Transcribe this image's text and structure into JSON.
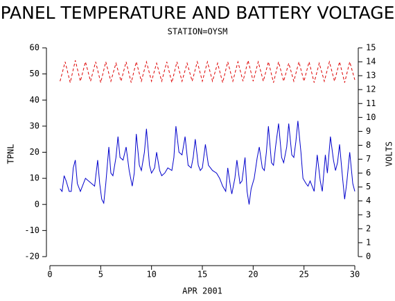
{
  "chart_data": {
    "type": "line",
    "title": "PANEL TEMPERATURE AND BATTERY VOLTAGE",
    "subtitle": "STATION=OYSM",
    "x_label": "APR 2001",
    "y_label": "TPNL",
    "y2_label": "VOLTS",
    "xlim": [
      0,
      30
    ],
    "xticks": [
      0,
      5,
      10,
      15,
      20,
      25,
      30
    ],
    "ylim": [
      -20,
      60
    ],
    "yticks": [
      -20,
      -10,
      0,
      10,
      20,
      30,
      40,
      50,
      60
    ],
    "y2lim": [
      0,
      15
    ],
    "y2ticks": [
      0,
      1,
      2,
      3,
      4,
      5,
      6,
      7,
      8,
      9,
      10,
      11,
      12,
      13,
      14,
      15
    ],
    "series": [
      {
        "color": "#0000cc",
        "x": [
          1.0,
          1.2,
          1.4,
          1.6,
          1.9,
          2.1,
          2.3,
          2.5,
          2.7,
          3.0,
          3.2,
          3.5,
          3.8,
          4.1,
          4.4,
          4.7,
          4.9,
          5.1,
          5.3,
          5.5,
          5.8,
          6.0,
          6.2,
          6.5,
          6.7,
          6.9,
          7.2,
          7.5,
          7.8,
          8.1,
          8.3,
          8.5,
          8.8,
          9.0,
          9.3,
          9.5,
          9.8,
          10.0,
          10.3,
          10.5,
          10.8,
          11.0,
          11.3,
          11.6,
          12.0,
          12.2,
          12.4,
          12.7,
          13.0,
          13.3,
          13.6,
          13.9,
          14.1,
          14.3,
          14.6,
          14.8,
          15.0,
          15.3,
          15.6,
          16.0,
          16.4,
          16.7,
          17.0,
          17.3,
          17.5,
          17.8,
          17.9,
          18.2,
          18.4,
          18.7,
          18.9,
          19.2,
          19.4,
          19.6,
          19.8,
          20.1,
          20.4,
          20.6,
          20.9,
          21.1,
          21.3,
          21.5,
          21.8,
          22.0,
          22.2,
          22.5,
          22.8,
          23.0,
          23.3,
          23.5,
          23.8,
          24.0,
          24.2,
          24.4,
          24.7,
          24.9,
          25.2,
          25.4,
          25.6,
          25.9,
          26.0,
          26.3,
          26.6,
          26.8,
          27.1,
          27.3,
          27.6,
          27.9,
          28.1,
          28.3,
          28.5,
          28.8,
          29.0,
          29.2,
          29.5,
          29.8,
          30.0
        ],
        "values": [
          6,
          5,
          11,
          9,
          5,
          5,
          14,
          17,
          8,
          5,
          7,
          10,
          9,
          8,
          7,
          17,
          8,
          2,
          0.5,
          8,
          22,
          12,
          11,
          18,
          26,
          18,
          17,
          22,
          13,
          7,
          12,
          27,
          15,
          13,
          20,
          29,
          15,
          12,
          14,
          20,
          13,
          11,
          12,
          14,
          13,
          18,
          30,
          20,
          19,
          26,
          15,
          14,
          18,
          25,
          15,
          13,
          14,
          23,
          15,
          13,
          12,
          10,
          7,
          5,
          14,
          6,
          4,
          10,
          17,
          8,
          9,
          18,
          5,
          0,
          6,
          10,
          18,
          22,
          14,
          13,
          20,
          30,
          16,
          15,
          22,
          31,
          18,
          16,
          22,
          31,
          19,
          18,
          24,
          32,
          20,
          10,
          8,
          7,
          9,
          6,
          5,
          19,
          9,
          5,
          19,
          12,
          26,
          17,
          13,
          16,
          23,
          10,
          2,
          8,
          20,
          8,
          5
        ]
      },
      {
        "color": "#dd0000",
        "axis": "y2",
        "x": [
          1.0,
          1.5,
          2.0,
          2.5,
          3.0,
          3.5,
          4.0,
          4.5,
          5.0,
          5.5,
          6.0,
          6.5,
          7.0,
          7.5,
          8.0,
          8.5,
          9.0,
          9.5,
          10.0,
          10.5,
          11.0,
          11.5,
          12.0,
          12.5,
          13.0,
          13.5,
          14.0,
          14.5,
          15.0,
          15.5,
          16.0,
          16.5,
          17.0,
          17.5,
          18.0,
          18.5,
          19.0,
          19.5,
          20.0,
          20.5,
          21.0,
          21.5,
          22.0,
          22.5,
          23.0,
          23.5,
          24.0,
          24.5,
          25.0,
          25.5,
          26.0,
          26.5,
          27.0,
          27.5,
          28.0,
          28.5,
          29.0,
          29.5,
          30.0
        ],
        "values": [
          12.6,
          14.0,
          12.5,
          14.1,
          12.6,
          14.0,
          12.6,
          14.0,
          12.5,
          14.0,
          12.6,
          13.9,
          12.6,
          14.0,
          12.5,
          14.0,
          12.6,
          14.0,
          12.6,
          13.9,
          12.6,
          14.0,
          12.5,
          14.0,
          12.6,
          13.9,
          12.6,
          14.0,
          12.6,
          14.0,
          12.6,
          13.9,
          12.5,
          14.0,
          12.6,
          14.0,
          12.6,
          14.1,
          12.6,
          14.0,
          12.6,
          14.0,
          12.5,
          14.0,
          12.6,
          13.9,
          12.6,
          14.0,
          12.6,
          14.0,
          12.5,
          13.9,
          12.6,
          14.0,
          12.6,
          14.0,
          12.5,
          14.0,
          12.7
        ]
      }
    ]
  }
}
